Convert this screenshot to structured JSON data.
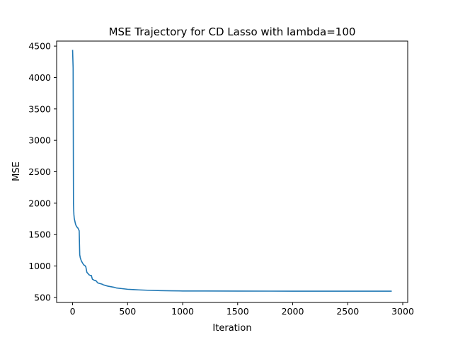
{
  "chart_data": {
    "type": "line",
    "title": "MSE Trajectory for CD Lasso with lambda=100",
    "xlabel": "Iteration",
    "ylabel": "MSE",
    "xlim": [
      -145,
      3045
    ],
    "ylim": [
      420,
      4580
    ],
    "xticks": [
      0,
      500,
      1000,
      1500,
      2000,
      2500,
      3000
    ],
    "yticks": [
      500,
      1000,
      1500,
      2000,
      2500,
      3000,
      3500,
      4000,
      4500
    ],
    "grid": false,
    "line_color": "#1f77b4",
    "series": [
      {
        "x": [
          0,
          5,
          8,
          10,
          12,
          15,
          20,
          25,
          30,
          40,
          50,
          55,
          60,
          65,
          70,
          80,
          90,
          100,
          110,
          120,
          130,
          140,
          150,
          160,
          170,
          180,
          190,
          200,
          210,
          220,
          230,
          250,
          270,
          280,
          300,
          320,
          350,
          380,
          400,
          450,
          500,
          550,
          600,
          700,
          800,
          900,
          1000,
          1200,
          1500,
          2000,
          2500,
          2900
        ],
        "y": [
          4440,
          4150,
          2000,
          1900,
          1820,
          1760,
          1720,
          1680,
          1650,
          1620,
          1600,
          1580,
          1560,
          1180,
          1130,
          1080,
          1050,
          1020,
          1010,
          990,
          900,
          880,
          860,
          850,
          850,
          790,
          780,
          770,
          770,
          750,
          730,
          720,
          710,
          700,
          690,
          680,
          670,
          660,
          650,
          640,
          630,
          625,
          620,
          613,
          608,
          605,
          603,
          602,
          601,
          600,
          600,
          600
        ]
      }
    ]
  }
}
